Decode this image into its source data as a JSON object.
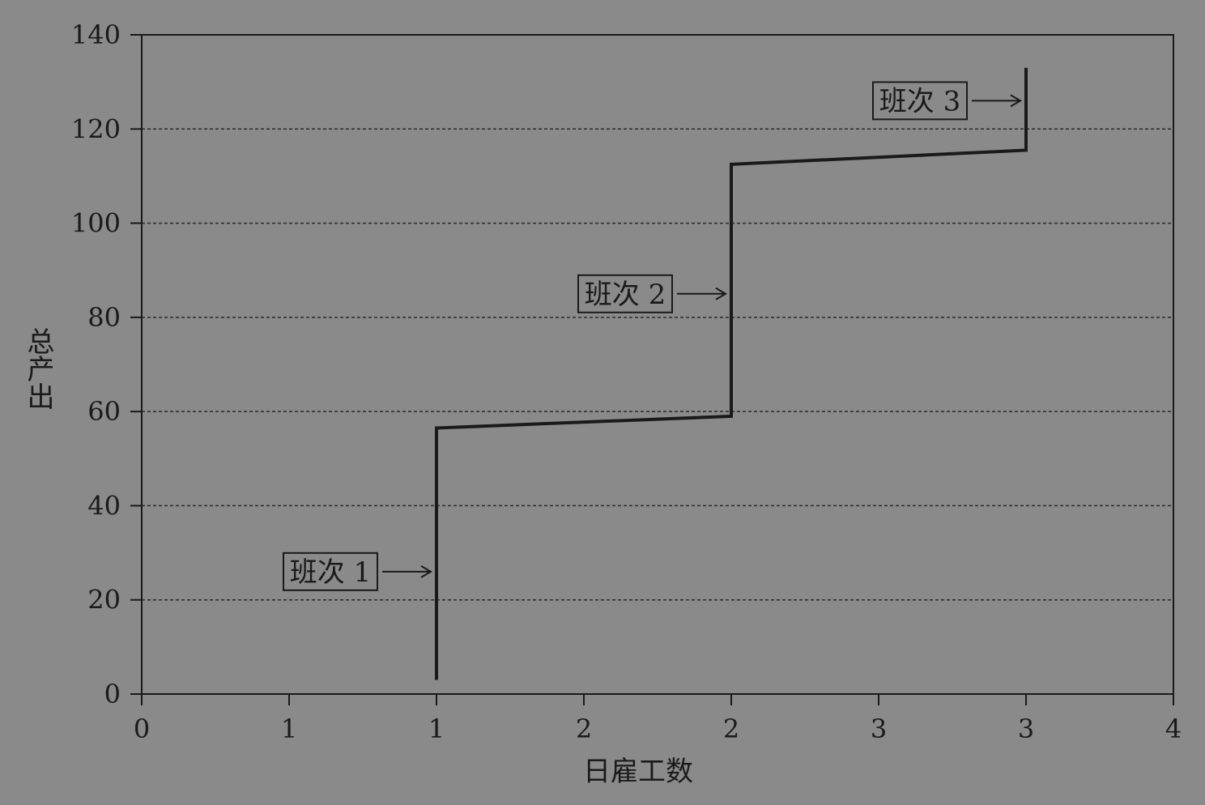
{
  "chart_data": {
    "type": "line",
    "title": "",
    "xlabel": "日雇工数",
    "ylabel": "总产出",
    "xlim": [
      0,
      3.5
    ],
    "ylim": [
      0,
      140
    ],
    "x_tick_labels": [
      "0",
      "1",
      "1",
      "2",
      "2",
      "3",
      "3",
      "4"
    ],
    "y_ticks": [
      0,
      20,
      40,
      60,
      80,
      100,
      120,
      140
    ],
    "grid": "horizontal dashed",
    "legend": "none",
    "series": [
      {
        "x": [
          1,
          1,
          2,
          2,
          3,
          3
        ],
        "y": [
          3,
          56.5,
          59,
          112.5,
          115.5,
          133
        ]
      }
    ],
    "annotations": [
      {
        "text": "班次 1",
        "x": 1,
        "y": 26
      },
      {
        "text": "班次 2",
        "x": 2,
        "y": 85
      },
      {
        "text": "班次 3",
        "x": 3,
        "y": 126
      }
    ],
    "colors": {
      "background": "#8a8a8a",
      "line": "#1a1a1a",
      "grid": "#2a2a2a"
    }
  }
}
